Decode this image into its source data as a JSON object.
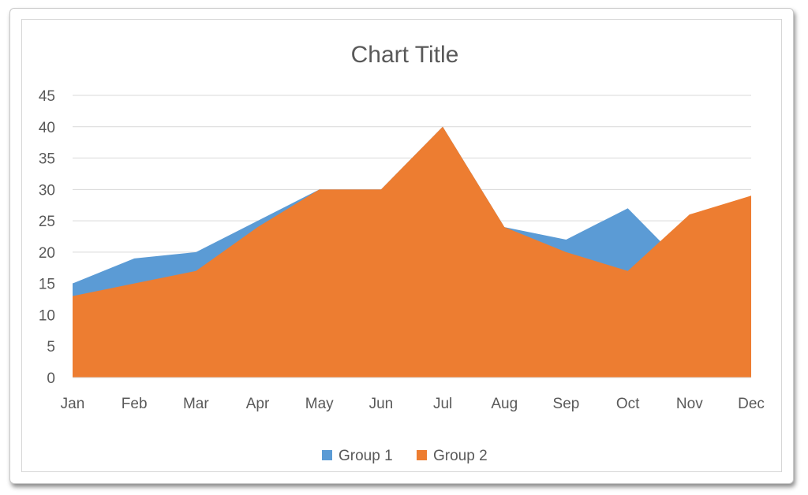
{
  "chart_data": {
    "type": "area",
    "title": "Chart Title",
    "categories": [
      "Jan",
      "Feb",
      "Mar",
      "Apr",
      "May",
      "Jun",
      "Jul",
      "Aug",
      "Sep",
      "Oct",
      "Nov",
      "Dec"
    ],
    "series": [
      {
        "name": "Group 1",
        "values": [
          15,
          19,
          20,
          25,
          30,
          30,
          40,
          24,
          22,
          27,
          17,
          29
        ],
        "color": "#5B9BD5"
      },
      {
        "name": "Group 2",
        "values": [
          13,
          15,
          17,
          24,
          30,
          30,
          40,
          24,
          20,
          17,
          26,
          29
        ],
        "color": "#ED7D31"
      }
    ],
    "ylim": [
      0,
      45
    ],
    "yticks": [
      0,
      5,
      10,
      15,
      20,
      25,
      30,
      35,
      40,
      45
    ],
    "grid": true,
    "legend": "bottom"
  }
}
